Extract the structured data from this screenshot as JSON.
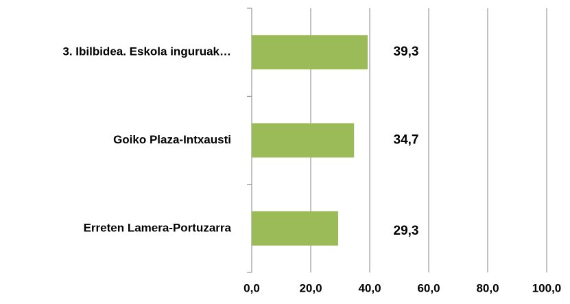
{
  "chart_data": {
    "type": "barh",
    "categories": [
      "3. Ibilbidea. Eskola inguruak…",
      "Goiko Plaza-Intxausti",
      "Erreten Lamera-Portuzarra"
    ],
    "values": [
      39.3,
      34.7,
      29.3
    ],
    "value_labels": [
      "39,3",
      "34,7",
      "29,3"
    ],
    "color": "#9bbb59",
    "xlim": [
      0,
      100
    ],
    "xticks": [
      {
        "value": 0,
        "label": "0,0"
      },
      {
        "value": 20,
        "label": "20,0"
      },
      {
        "value": 40,
        "label": "40,0"
      },
      {
        "value": 60,
        "label": "60,0"
      },
      {
        "value": 80,
        "label": "80,0"
      },
      {
        "value": 100,
        "label": "100,0"
      }
    ],
    "grid": true
  }
}
